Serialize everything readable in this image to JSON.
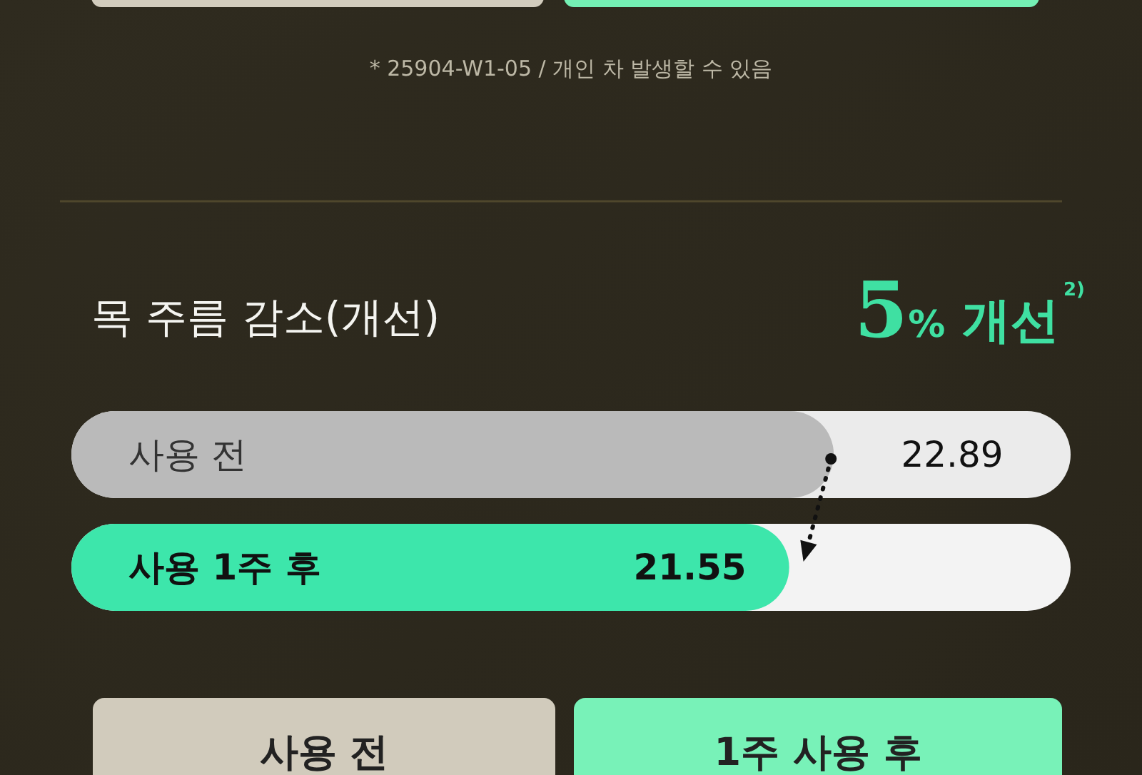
{
  "chart_data": {
    "type": "bar",
    "orientation": "horizontal",
    "title": "목 주름 감소(개선)",
    "categories": [
      "사용 전",
      "사용 1주 후"
    ],
    "values": [
      22.89,
      21.55
    ],
    "colors": [
      "#bababa",
      "#3de6ab"
    ],
    "data_labels": true,
    "xlim": [
      0,
      30
    ],
    "annotations": [
      "* 25904-W1-05 / 개인 차 발생할 수 있음",
      "5% 개선$^{2)}$",
      "사용 전",
      "1주 사용 후"
    ]
  }
}
